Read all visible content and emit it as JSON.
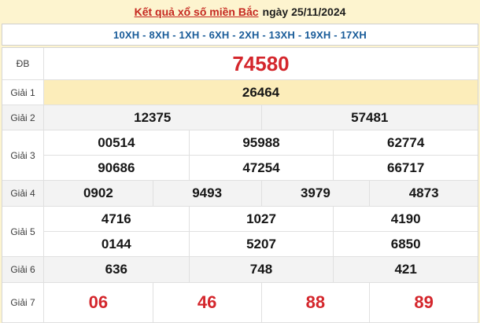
{
  "header": {
    "title_link": "Kết quả xổ số miền Bắc",
    "title_date": "ngày 25/11/2024"
  },
  "codes": {
    "line": "10XH - 8XH - 1XH - 6XH - 2XH - 13XH - 19XH - 17XH"
  },
  "results": {
    "db": {
      "label": "ĐB",
      "values": [
        "74580"
      ]
    },
    "g1": {
      "label": "Giải 1",
      "values": [
        "26464"
      ]
    },
    "g2": {
      "label": "Giải 2",
      "values": [
        "12375",
        "57481"
      ]
    },
    "g3": {
      "label": "Giải 3",
      "values": [
        "00514",
        "95988",
        "62774",
        "90686",
        "47254",
        "66717"
      ]
    },
    "g4": {
      "label": "Giải 4",
      "values": [
        "0902",
        "9493",
        "3979",
        "4873"
      ]
    },
    "g5": {
      "label": "Giải 5",
      "values": [
        "4716",
        "1027",
        "4190",
        "0144",
        "5207",
        "6850"
      ]
    },
    "g6": {
      "label": "Giải 6",
      "values": [
        "636",
        "748",
        "421"
      ]
    },
    "g7": {
      "label": "Giải 7",
      "values": [
        "06",
        "46",
        "88",
        "89"
      ]
    }
  },
  "colors": {
    "page_bg": "#fdf4cf",
    "prize1_bg": "#fcedba",
    "alt_row_bg": "#f3f3f3",
    "special_red": "#d4262c",
    "codes_blue": "#1a5c99",
    "title_red": "#c5271f"
  }
}
